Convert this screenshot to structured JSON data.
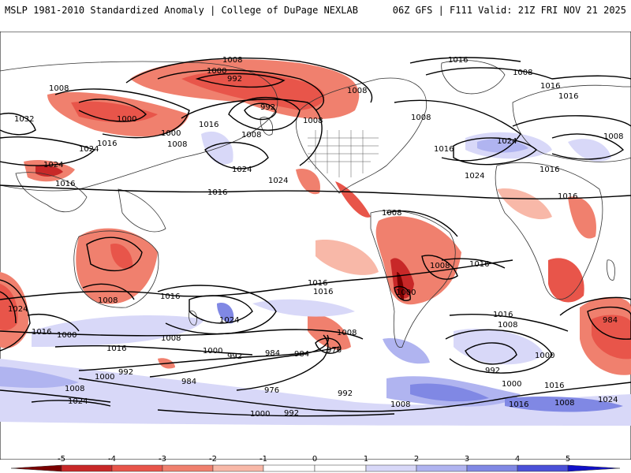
{
  "header": {
    "left": "MSLP 1981-2010 Standardized Anomaly | College of DuPage NEXLAB",
    "right": "06Z GFS | F111 Valid: 21Z FRI NOV 21 2025"
  },
  "colors": {
    "neg5": "#7a0000",
    "neg4": "#c82828",
    "neg3": "#e8554a",
    "neg2": "#f0806e",
    "neg1": "#f8b8a8",
    "zero": "#ffffff",
    "pos1": "#d8d8f8",
    "pos2": "#b0b4f0",
    "pos3": "#8088e4",
    "pos4": "#4a50d8",
    "pos5": "#1010c8"
  },
  "isobar_labels": [
    "1008",
    "1000",
    "992",
    "1008",
    "992",
    "1008",
    "1000",
    "1032",
    "1000",
    "1016",
    "1008",
    "1024",
    "1024",
    "1008",
    "1016",
    "1016",
    "1024",
    "1024",
    "1008",
    "1016",
    "1024",
    "1008",
    "1016",
    "1016",
    "1024",
    "1016",
    "1008",
    "1016",
    "1008",
    "1008",
    "1008",
    "1016",
    "1008",
    "1016",
    "1016",
    "1000",
    "1016",
    "1024",
    "1016",
    "1000",
    "1008",
    "1000",
    "992",
    "984",
    "976",
    "992",
    "1000",
    "984",
    "976",
    "1008",
    "1016",
    "1016",
    "1008",
    "1016",
    "984",
    "1000",
    "992",
    "1000",
    "1016",
    "1008",
    "1024",
    "1008",
    "1016",
    "1024",
    "992",
    "984",
    "1000",
    "992",
    "1024",
    "1008",
    "1016"
  ],
  "legend": {
    "ticks": [
      "-5",
      "-4",
      "-3",
      "-2",
      "-1",
      "0",
      "1",
      "2",
      "3",
      "4",
      "5"
    ]
  }
}
